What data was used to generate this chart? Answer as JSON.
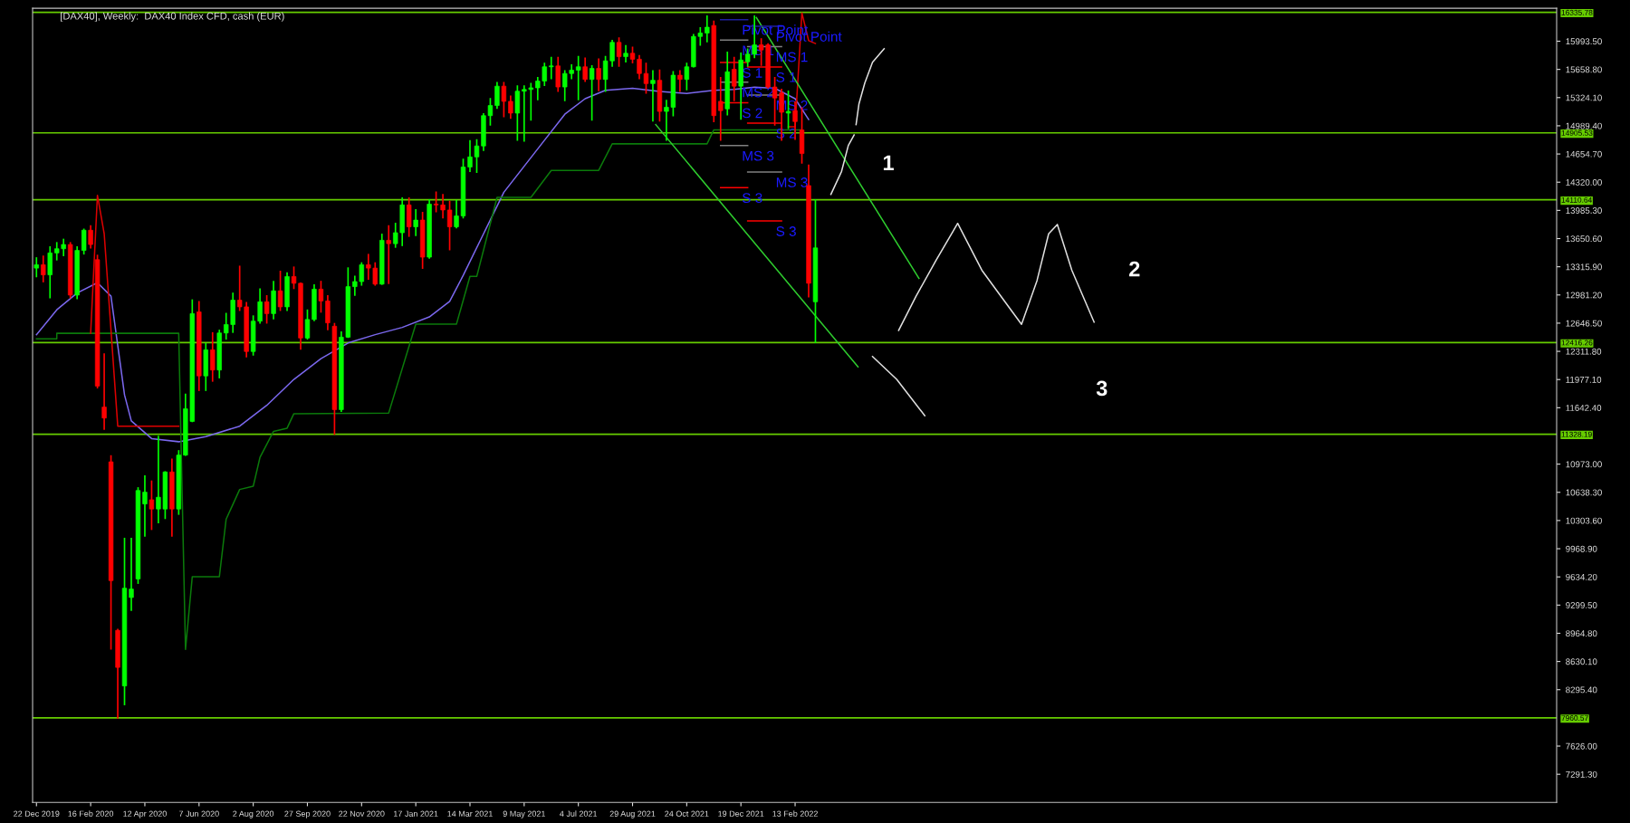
{
  "chart_data": {
    "type": "candlestick",
    "title": "[DAX40], Weekly:  DAX40 Index CFD, cash (EUR)",
    "xlim": [
      "2019-12-18",
      "2024-04-10"
    ],
    "ylim": [
      6957,
      16385
    ],
    "xticks": [
      {
        "value": "2019-12-22",
        "label": "22 Dec 2019"
      },
      {
        "value": "2020-02-16",
        "label": "16 Feb 2020"
      },
      {
        "value": "2020-04-12",
        "label": "12 Apr 2020"
      },
      {
        "value": "2020-06-07",
        "label": "7 Jun 2020"
      },
      {
        "value": "2020-08-02",
        "label": "2 Aug 2020"
      },
      {
        "value": "2020-09-27",
        "label": "27 Sep 2020"
      },
      {
        "value": "2020-11-22",
        "label": "22 Nov 2020"
      },
      {
        "value": "2021-01-17",
        "label": "17 Jan 2021"
      },
      {
        "value": "2021-03-14",
        "label": "14 Mar 2021"
      },
      {
        "value": "2021-05-09",
        "label": "9 May 2021"
      },
      {
        "value": "2021-07-04",
        "label": "4 Jul 2021"
      },
      {
        "value": "2021-08-29",
        "label": "29 Aug 2021"
      },
      {
        "value": "2021-10-24",
        "label": "24 Oct 2021"
      },
      {
        "value": "2021-12-19",
        "label": "19 Dec 2021"
      },
      {
        "value": "2022-02-13",
        "label": "13 Feb 2022"
      }
    ],
    "yticks": [
      {
        "value": 15993.5,
        "label": "15993.50"
      },
      {
        "value": 15658.8,
        "label": "15658.80"
      },
      {
        "value": 15324.1,
        "label": "15324.10"
      },
      {
        "value": 14989.4,
        "label": "14989.40"
      },
      {
        "value": 14654.7,
        "label": "14654.70"
      },
      {
        "value": 14320.0,
        "label": "14320.00"
      },
      {
        "value": 13985.3,
        "label": "13985.30"
      },
      {
        "value": 13650.6,
        "label": "13650.60"
      },
      {
        "value": 13315.9,
        "label": "13315.90"
      },
      {
        "value": 12981.2,
        "label": "12981.20"
      },
      {
        "value": 12646.5,
        "label": "12646.50"
      },
      {
        "value": 12311.8,
        "label": "12311.80"
      },
      {
        "value": 11977.1,
        "label": "11977.10"
      },
      {
        "value": 11642.4,
        "label": "11642.40"
      },
      {
        "value": 10973.0,
        "label": "10973.00"
      },
      {
        "value": 10638.3,
        "label": "10638.30"
      },
      {
        "value": 10303.6,
        "label": "10303.60"
      },
      {
        "value": 9968.9,
        "label": "9968.90"
      },
      {
        "value": 9634.2,
        "label": "9634.20"
      },
      {
        "value": 9299.5,
        "label": "9299.50"
      },
      {
        "value": 8964.8,
        "label": "8964.80"
      },
      {
        "value": 8630.1,
        "label": "8630.10"
      },
      {
        "value": 8295.4,
        "label": "8295.40"
      },
      {
        "value": 7626.0,
        "label": "7626.00"
      },
      {
        "value": 7291.3,
        "label": "7291.30"
      }
    ],
    "grid": false,
    "ref_lines": [
      {
        "axis": "y",
        "value": 16335.78,
        "label": "16335.78",
        "color": "#66cc00"
      },
      {
        "axis": "y",
        "value": 14905.53,
        "label": "14905.53",
        "color": "#66cc00"
      },
      {
        "axis": "y",
        "value": 14110.64,
        "label": "14110.64",
        "color": "#66cc00"
      },
      {
        "axis": "y",
        "value": 12416.26,
        "label": "12416.26",
        "color": "#66cc00"
      },
      {
        "axis": "y",
        "value": 11328.19,
        "label": "11328.19",
        "color": "#66cc00"
      },
      {
        "axis": "y",
        "value": 7960.57,
        "label": "7960.57",
        "color": "#66cc00"
      }
    ],
    "annotations": [
      "1",
      "2",
      "3"
    ],
    "series": [
      {
        "type": "line",
        "color": "#7b68ee",
        "x": [
          "2019-12-22",
          "2020-01-12",
          "2020-02-02",
          "2020-02-23",
          "2020-03-08",
          "2020-03-22",
          "2020-03-29",
          "2020-04-19",
          "2020-05-17",
          "2020-06-14",
          "2020-07-19",
          "2020-08-16",
          "2020-09-13",
          "2020-10-11",
          "2020-11-08",
          "2020-12-06",
          "2021-01-03",
          "2021-01-31",
          "2021-02-21",
          "2021-03-07",
          "2021-03-28",
          "2021-04-18",
          "2021-05-09",
          "2021-05-30",
          "2021-06-20",
          "2021-07-11",
          "2021-08-01",
          "2021-08-29",
          "2021-09-26",
          "2021-10-24",
          "2021-11-21",
          "2021-12-12",
          "2022-01-02",
          "2022-01-23",
          "2022-02-13",
          "2022-02-20",
          "2022-02-27"
        ],
        "values": [
          12510,
          12805,
          13004,
          13127,
          12967,
          11795,
          11486,
          11276,
          11239,
          11300,
          11424,
          11671,
          11979,
          12226,
          12411,
          12510,
          12596,
          12720,
          12905,
          13214,
          13707,
          14200,
          14509,
          14818,
          15126,
          15311,
          15410,
          15435,
          15398,
          15373,
          15410,
          15422,
          15447,
          15435,
          15311,
          15188,
          15064
        ]
      },
      {
        "type": "line",
        "color": "#0b7a0b",
        "x": [
          "2019-12-22",
          "2020-01-12",
          "2020-01-12",
          "2020-05-17",
          "2020-05-24",
          "2020-05-31",
          "2020-06-28",
          "2020-07-05",
          "2020-07-19",
          "2020-08-02",
          "2020-08-09",
          "2020-08-23",
          "2020-09-06",
          "2020-09-13",
          "2020-12-20",
          "2021-01-17",
          "2021-02-28",
          "2021-03-14",
          "2021-03-21",
          "2021-04-11",
          "2021-05-16",
          "2021-06-06",
          "2021-07-25",
          "2021-08-08",
          "2021-11-14",
          "2021-11-21",
          "2022-02-20"
        ],
        "values": [
          12460,
          12460,
          12526,
          12526,
          8773,
          9636,
          9636,
          10319,
          10672,
          10710,
          11053,
          11362,
          11400,
          11572,
          11580,
          12634,
          12634,
          13201,
          13201,
          14139,
          14139,
          14460,
          14460,
          14775,
          14775,
          14941,
          14941
        ]
      },
      {
        "type": "line",
        "color": "#dd0000",
        "x": [
          "2020-02-16",
          "2020-02-23",
          "2020-03-01",
          "2020-03-15",
          "2020-05-17",
          "2020-05-24",
          "2022-02-06",
          "2022-02-13",
          "2022-02-20",
          "2022-02-27",
          "2022-03-06"
        ],
        "values": [
          12526,
          14164,
          13707,
          11424,
          11424,
          null,
          14978,
          14978,
          16330,
          16000,
          15966
        ]
      },
      {
        "type": "line",
        "color": "#2ecc2e",
        "x": [
          "2022-01-04",
          "2022-06-21"
        ],
        "values": [
          16274,
          13177
        ]
      },
      {
        "type": "line",
        "color": "#2ecc2e",
        "x": [
          "2021-09-22",
          "2022-04-19"
        ],
        "values": [
          15003,
          12128
        ]
      },
      {
        "type": "line",
        "color": "#1f1fa0",
        "name": "Pivot Point",
        "x": [
          "2021-11-28",
          "2021-12-26"
        ],
        "values": [
          16250,
          16250
        ]
      },
      {
        "type": "line",
        "color": "#808080",
        "name": "MS 1",
        "x": [
          "2021-11-28",
          "2021-12-26"
        ],
        "values": [
          16007,
          16007
        ]
      },
      {
        "type": "line",
        "color": "#ff0000",
        "name": "S 1",
        "x": [
          "2021-11-28",
          "2021-12-26"
        ],
        "values": [
          15740,
          15740
        ]
      },
      {
        "type": "line",
        "color": "#808080",
        "name": "MS 2",
        "x": [
          "2021-11-28",
          "2021-12-26"
        ],
        "values": [
          15508,
          15508
        ]
      },
      {
        "type": "line",
        "color": "#ff0000",
        "name": "S 2",
        "x": [
          "2021-11-28",
          "2021-12-26"
        ],
        "values": [
          15263,
          15263
        ]
      },
      {
        "type": "line",
        "color": "#808080",
        "name": "MS 3",
        "x": [
          "2021-11-28",
          "2021-12-26"
        ],
        "values": [
          14755,
          14755
        ]
      },
      {
        "type": "line",
        "color": "#ff0000",
        "name": "S 3",
        "x": [
          "2021-11-28",
          "2021-12-26"
        ],
        "values": [
          14255,
          14255
        ]
      },
      {
        "type": "line",
        "color": "#1f1fa0",
        "name": "Pivot Point",
        "x": [
          "2021-12-26",
          "2022-01-30"
        ],
        "values": [
          16170,
          16170
        ]
      },
      {
        "type": "line",
        "color": "#808080",
        "name": "MS 1",
        "x": [
          "2021-12-26",
          "2022-01-30"
        ],
        "values": [
          15928,
          15928
        ]
      },
      {
        "type": "line",
        "color": "#ff0000",
        "name": "S 1",
        "x": [
          "2021-12-26",
          "2022-01-30"
        ],
        "values": [
          15688,
          15688
        ]
      },
      {
        "type": "line",
        "color": "#808080",
        "name": "MS 2",
        "x": [
          "2021-12-26",
          "2022-01-30"
        ],
        "values": [
          15355,
          15355
        ]
      },
      {
        "type": "line",
        "color": "#ff0000",
        "name": "S 2",
        "x": [
          "2021-12-26",
          "2022-01-30"
        ],
        "values": [
          15022,
          15022
        ]
      },
      {
        "type": "line",
        "color": "#808080",
        "name": "MS 3",
        "x": [
          "2021-12-26",
          "2022-01-30"
        ],
        "values": [
          14440,
          14440
        ]
      },
      {
        "type": "line",
        "color": "#ff0000",
        "name": "S 3",
        "x": [
          "2021-12-26",
          "2022-01-30"
        ],
        "values": [
          13859,
          13859
        ]
      },
      {
        "type": "line",
        "color": "#e0e0e0",
        "x": [
          "2022-03-22",
          "2022-04-02",
          "2022-04-09",
          "2022-04-15"
        ],
        "values": [
          14176,
          14448,
          14756,
          14880
        ]
      },
      {
        "type": "line",
        "color": "#e0e0e0",
        "x": [
          "2022-04-17",
          "2022-04-20",
          "2022-04-26",
          "2022-05-04",
          "2022-05-16"
        ],
        "values": [
          15003,
          15250,
          15497,
          15743,
          15904
        ]
      },
      {
        "type": "line",
        "color": "#e0e0e0",
        "x": [
          "2022-05-04",
          "2022-05-29",
          "2022-06-27"
        ],
        "values": [
          12251,
          11980,
          11548
        ]
      },
      {
        "type": "line",
        "color": "#e0e0e0",
        "x": [
          "2022-05-31",
          "2022-06-18",
          "2022-07-09",
          "2022-07-31",
          "2022-08-25",
          "2022-10-05",
          "2022-10-21",
          "2022-11-02",
          "2022-11-11",
          "2022-11-26",
          "2022-12-19"
        ],
        "values": [
          12560,
          12967,
          13399,
          13831,
          13275,
          12633,
          13152,
          13707,
          13818,
          13275,
          12658
        ]
      },
      {
        "x": [
          "2019-12-22",
          "2019-12-29",
          "2020-01-05",
          "2020-01-12",
          "2020-01-19",
          "2020-01-26",
          "2020-02-02",
          "2020-02-09",
          "2020-02-16",
          "2020-02-23",
          "2020-03-01",
          "2020-03-08",
          "2020-03-15",
          "2020-03-22",
          "2020-03-29",
          "2020-04-05",
          "2020-04-12",
          "2020-04-19",
          "2020-04-26",
          "2020-05-03",
          "2020-05-10",
          "2020-05-17",
          "2020-05-24",
          "2020-05-31",
          "2020-06-07",
          "2020-06-14",
          "2020-06-21",
          "2020-06-28",
          "2020-07-05",
          "2020-07-12",
          "2020-07-19",
          "2020-07-26",
          "2020-08-02",
          "2020-08-09",
          "2020-08-16",
          "2020-08-23",
          "2020-08-30",
          "2020-09-06",
          "2020-09-13",
          "2020-09-20",
          "2020-09-27",
          "2020-10-04",
          "2020-10-11",
          "2020-10-18",
          "2020-10-25",
          "2020-11-01",
          "2020-11-08",
          "2020-11-15",
          "2020-11-22",
          "2020-11-29",
          "2020-12-06",
          "2020-12-13",
          "2020-12-20",
          "2020-12-27",
          "2021-01-03",
          "2021-01-10",
          "2021-01-17",
          "2021-01-24",
          "2021-01-31",
          "2021-02-07",
          "2021-02-14",
          "2021-02-21",
          "2021-02-28",
          "2021-03-07",
          "2021-03-14",
          "2021-03-21",
          "2021-03-28",
          "2021-04-04",
          "2021-04-11",
          "2021-04-18",
          "2021-04-25",
          "2021-05-02",
          "2021-05-09",
          "2021-05-16",
          "2021-05-23",
          "2021-05-30",
          "2021-06-06",
          "2021-06-13",
          "2021-06-20",
          "2021-06-27",
          "2021-07-04",
          "2021-07-11",
          "2021-07-18",
          "2021-07-25",
          "2021-08-01",
          "2021-08-08",
          "2021-08-15",
          "2021-08-22",
          "2021-08-29",
          "2021-09-05",
          "2021-09-12",
          "2021-09-19",
          "2021-09-26",
          "2021-10-03",
          "2021-10-10",
          "2021-10-17",
          "2021-10-24",
          "2021-10-31",
          "2021-11-07",
          "2021-11-14",
          "2021-11-21",
          "2021-11-28",
          "2021-12-05",
          "2021-12-12",
          "2021-12-19",
          "2021-12-26",
          "2022-01-02",
          "2022-01-09",
          "2022-01-16",
          "2022-01-23",
          "2022-01-30",
          "2022-02-06",
          "2022-02-13",
          "2022-02-20",
          "2022-02-27",
          "2022-03-06"
        ],
        "ohlc": [
          [
            13300,
            13420,
            13200,
            13340
          ],
          [
            13340,
            13440,
            13140,
            13220
          ],
          [
            13220,
            13550,
            12950,
            13480
          ],
          [
            13480,
            13600,
            13400,
            13530
          ],
          [
            13530,
            13640,
            13450,
            13580
          ],
          [
            13580,
            13600,
            12950,
            12980
          ],
          [
            12980,
            13550,
            12940,
            13510
          ],
          [
            13510,
            13760,
            13470,
            13750
          ],
          [
            13750,
            13800,
            13540,
            13580
          ],
          [
            13400,
            13450,
            11880,
            11900
          ],
          [
            11650,
            12280,
            11390,
            11520
          ],
          [
            11000,
            11070,
            8780,
            9590
          ],
          [
            9000,
            9010,
            7960,
            8560
          ],
          [
            8340,
            10090,
            8120,
            9500
          ],
          [
            9390,
            10090,
            9240,
            9490
          ],
          [
            9610,
            10690,
            9560,
            10660
          ],
          [
            10500,
            10830,
            10120,
            10640
          ],
          [
            10550,
            10770,
            10200,
            10440
          ],
          [
            10440,
            11300,
            10280,
            10580
          ],
          [
            10440,
            10880,
            10330,
            10880
          ],
          [
            10880,
            11030,
            10120,
            10440
          ],
          [
            10440,
            11130,
            10380,
            11080
          ],
          [
            11080,
            11800,
            11080,
            11630
          ],
          [
            11480,
            12920,
            11480,
            12760
          ],
          [
            12780,
            12900,
            11850,
            12020
          ],
          [
            12020,
            12400,
            11850,
            12330
          ],
          [
            12330,
            12530,
            11960,
            12090
          ],
          [
            12090,
            12560,
            12000,
            12530
          ],
          [
            12530,
            12760,
            12460,
            12630
          ],
          [
            12630,
            13000,
            12540,
            12920
          ],
          [
            12920,
            13320,
            12800,
            12840
          ],
          [
            12840,
            12890,
            12250,
            12310
          ],
          [
            12310,
            12730,
            12270,
            12670
          ],
          [
            12670,
            13050,
            12650,
            12900
          ],
          [
            12900,
            12970,
            12650,
            12760
          ],
          [
            12760,
            13140,
            12700,
            13030
          ],
          [
            13030,
            13260,
            12800,
            12840
          ],
          [
            12840,
            13240,
            12800,
            13200
          ],
          [
            13200,
            13310,
            13060,
            13120
          ],
          [
            13120,
            13120,
            12340,
            12470
          ],
          [
            12470,
            12800,
            12460,
            12690
          ],
          [
            12690,
            13100,
            12680,
            13050
          ],
          [
            13050,
            13140,
            12780,
            12910
          ],
          [
            12910,
            12970,
            12570,
            12650
          ],
          [
            12610,
            12640,
            11330,
            11620
          ],
          [
            11620,
            12540,
            11600,
            12480
          ],
          [
            12480,
            13300,
            12480,
            13080
          ],
          [
            13080,
            13200,
            12980,
            13140
          ],
          [
            13140,
            13360,
            13100,
            13340
          ],
          [
            13340,
            13460,
            13170,
            13300
          ],
          [
            13300,
            13360,
            13100,
            13110
          ],
          [
            13110,
            13700,
            13110,
            13630
          ],
          [
            13630,
            13800,
            13120,
            13590
          ],
          [
            13590,
            13830,
            13550,
            13720
          ],
          [
            13720,
            14130,
            13570,
            14050
          ],
          [
            14050,
            14130,
            13680,
            13790
          ],
          [
            13790,
            13990,
            13690,
            13870
          ],
          [
            13870,
            13960,
            13300,
            13430
          ],
          [
            13430,
            14110,
            13420,
            14060
          ],
          [
            14060,
            14200,
            13970,
            14050
          ],
          [
            14050,
            14170,
            13900,
            13990
          ],
          [
            13990,
            14090,
            13520,
            13790
          ],
          [
            13790,
            14100,
            13780,
            13920
          ],
          [
            13920,
            14590,
            13900,
            14500
          ],
          [
            14500,
            14810,
            14450,
            14620
          ],
          [
            14620,
            14820,
            14440,
            14750
          ],
          [
            14750,
            15130,
            14700,
            15110
          ],
          [
            15110,
            15310,
            15000,
            15230
          ],
          [
            15230,
            15500,
            15200,
            15460
          ],
          [
            15460,
            15500,
            15100,
            15280
          ],
          [
            15280,
            15340,
            15080,
            15140
          ],
          [
            15140,
            15460,
            14820,
            15400
          ],
          [
            15400,
            15460,
            14810,
            15420
          ],
          [
            15420,
            15490,
            15060,
            15440
          ],
          [
            15440,
            15560,
            15300,
            15520
          ],
          [
            15520,
            15730,
            15470,
            15690
          ],
          [
            15690,
            15800,
            15550,
            15700
          ],
          [
            15700,
            15800,
            15400,
            15450
          ],
          [
            15450,
            15640,
            15290,
            15610
          ],
          [
            15610,
            15710,
            15550,
            15650
          ],
          [
            15650,
            15810,
            15300,
            15690
          ],
          [
            15690,
            15790,
            15520,
            15540
          ],
          [
            15540,
            15700,
            15060,
            15670
          ],
          [
            15670,
            15780,
            15410,
            15540
          ],
          [
            15540,
            15810,
            15400,
            15760
          ],
          [
            15760,
            16000,
            15700,
            15980
          ],
          [
            15980,
            16030,
            15700,
            15810
          ],
          [
            15810,
            15940,
            15750,
            15850
          ],
          [
            15850,
            15920,
            15740,
            15780
          ],
          [
            15780,
            15820,
            15550,
            15610
          ],
          [
            15610,
            15730,
            15380,
            15490
          ],
          [
            15490,
            15640,
            15050,
            15530
          ],
          [
            15530,
            15650,
            15050,
            15160
          ],
          [
            15160,
            15290,
            14820,
            15210
          ],
          [
            15210,
            15630,
            15110,
            15590
          ],
          [
            15590,
            15640,
            15400,
            15540
          ],
          [
            15540,
            15730,
            15420,
            15690
          ],
          [
            15690,
            16070,
            15690,
            16050
          ],
          [
            16050,
            16150,
            15950,
            16090
          ],
          [
            16090,
            16290,
            15990,
            16160
          ],
          [
            16180,
            16230,
            15040,
            15110
          ],
          [
            15280,
            15560,
            14820,
            15170
          ],
          [
            15190,
            15860,
            15120,
            15630
          ],
          [
            15660,
            15800,
            15290,
            15460
          ],
          [
            15460,
            15850,
            15070,
            15770
          ],
          [
            15750,
            15900,
            15700,
            15840
          ],
          [
            15840,
            16290,
            15800,
            15950
          ],
          [
            15950,
            16020,
            15710,
            15890
          ],
          [
            15950,
            15960,
            15440,
            15450
          ],
          [
            15450,
            15560,
            15000,
            15320
          ],
          [
            15380,
            15420,
            14820,
            15150
          ],
          [
            15140,
            15400,
            14960,
            15160
          ],
          [
            15170,
            15270,
            14830,
            15040
          ],
          [
            14940,
            15200,
            14550,
            14660
          ],
          [
            14280,
            14520,
            12960,
            13120
          ],
          [
            12900,
            14110,
            12420,
            13540
          ]
        ]
      }
    ]
  }
}
